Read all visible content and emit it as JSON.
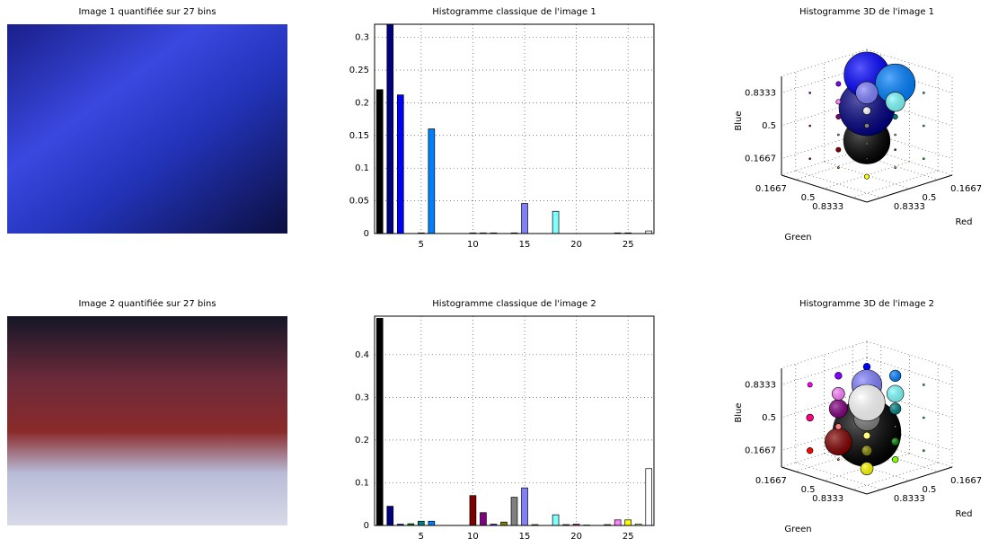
{
  "chart_data": [
    {
      "type": "image",
      "title": "Image 1 quantifiée sur 27 bins"
    },
    {
      "type": "bar",
      "title": "Histogramme classique de l'image 1",
      "x": [
        1,
        2,
        3,
        4,
        5,
        6,
        7,
        8,
        9,
        10,
        11,
        12,
        13,
        14,
        15,
        16,
        17,
        18,
        19,
        20,
        21,
        22,
        23,
        24,
        25,
        26,
        27
      ],
      "values": [
        0.22,
        0.32,
        0.212,
        0,
        0.001,
        0.16,
        0,
        0,
        0,
        0.001,
        0.001,
        0.001,
        0,
        0.001,
        0.046,
        0,
        0,
        0.034,
        0,
        0,
        0,
        0,
        0,
        0.001,
        0.001,
        0,
        0.004
      ],
      "colors": [
        "#000000",
        "#000080",
        "#0000ff",
        "#008000",
        "#008080",
        "#0080ff",
        "#00ff00",
        "#00ff80",
        "#00ffff",
        "#800000",
        "#800080",
        "#8000ff",
        "#808000",
        "#808080",
        "#8080ff",
        "#80ff00",
        "#80ff80",
        "#80ffff",
        "#ff0000",
        "#ff0080",
        "#ff00ff",
        "#ff8000",
        "#ff8080",
        "#ff80ff",
        "#ffff00",
        "#ffff80",
        "#ffffff"
      ],
      "xlim": [
        0.5,
        27.5
      ],
      "xticks": [
        5,
        10,
        15,
        20,
        25
      ],
      "ylim": [
        0,
        0.32
      ],
      "yticks": [
        0,
        0.05,
        0.1,
        0.15,
        0.2,
        0.25,
        0.3
      ],
      "grid": true
    },
    {
      "type": "scatter3d",
      "title": "Histogramme 3D de l'image 1",
      "xlabel": "Red",
      "ylabel": "Green",
      "zlabel": "Blue",
      "x": [
        0.1667,
        0.1667,
        0.1667,
        0.1667,
        0.1667,
        0.1667,
        0.1667,
        0.1667,
        0.1667,
        0.5,
        0.5,
        0.5,
        0.5,
        0.5,
        0.5,
        0.5,
        0.5,
        0.5,
        0.8333,
        0.8333,
        0.8333,
        0.8333,
        0.8333,
        0.8333,
        0.8333,
        0.8333,
        0.8333
      ],
      "y": [
        0.1667,
        0.1667,
        0.1667,
        0.5,
        0.5,
        0.5,
        0.8333,
        0.8333,
        0.8333,
        0.1667,
        0.1667,
        0.1667,
        0.5,
        0.5,
        0.5,
        0.8333,
        0.8333,
        0.8333,
        0.1667,
        0.1667,
        0.1667,
        0.5,
        0.5,
        0.5,
        0.8333,
        0.8333,
        0.8333
      ],
      "z": [
        0.1667,
        0.5,
        0.8333,
        0.1667,
        0.5,
        0.8333,
        0.1667,
        0.5,
        0.8333,
        0.1667,
        0.5,
        0.8333,
        0.1667,
        0.5,
        0.8333,
        0.1667,
        0.5,
        0.8333,
        0.1667,
        0.5,
        0.8333,
        0.1667,
        0.5,
        0.8333,
        0.1667,
        0.5,
        0.8333
      ],
      "sizes": [
        0.22,
        0.32,
        0.212,
        0,
        0.001,
        0.16,
        0,
        0,
        0,
        0.001,
        0.001,
        0.001,
        0,
        0.001,
        0.046,
        0,
        0,
        0.034,
        0,
        0,
        0,
        0,
        0,
        0.001,
        0.001,
        0,
        0.004
      ],
      "colors": [
        "#000000",
        "#000080",
        "#0000ff",
        "#008000",
        "#008080",
        "#0080ff",
        "#00ff00",
        "#00ff80",
        "#00ffff",
        "#800000",
        "#800080",
        "#8000ff",
        "#808000",
        "#808080",
        "#8080ff",
        "#80ff00",
        "#80ff80",
        "#80ffff",
        "#ff0000",
        "#ff0080",
        "#ff00ff",
        "#ff8000",
        "#ff8080",
        "#ff80ff",
        "#ffff00",
        "#ffff80",
        "#ffffff"
      ],
      "xlim": [
        0,
        1
      ],
      "ylim": [
        0,
        1
      ],
      "zlim": [
        0,
        1
      ],
      "xticks": [
        0.1667,
        0.5,
        0.8333
      ],
      "yticks": [
        0.1667,
        0.5,
        0.8333
      ],
      "zticks": [
        0.1667,
        0.5,
        0.8333
      ],
      "grid": true
    },
    {
      "type": "image",
      "title": "Image 2 quantifiée sur 27 bins"
    },
    {
      "type": "bar",
      "title": "Histogramme classique de l'image 2",
      "x": [
        1,
        2,
        3,
        4,
        5,
        6,
        7,
        8,
        9,
        10,
        11,
        12,
        13,
        14,
        15,
        16,
        17,
        18,
        19,
        20,
        21,
        22,
        23,
        24,
        25,
        26,
        27
      ],
      "values": [
        0.485,
        0.045,
        0.003,
        0.004,
        0.01,
        0.01,
        0,
        0,
        0,
        0.07,
        0.03,
        0.003,
        0.008,
        0.066,
        0.088,
        0.002,
        0,
        0.025,
        0.002,
        0.003,
        0.001,
        0,
        0.002,
        0.013,
        0.013,
        0.003,
        0.133
      ],
      "colors": [
        "#000000",
        "#000080",
        "#0000ff",
        "#008000",
        "#008080",
        "#0080ff",
        "#00ff00",
        "#00ff80",
        "#00ffff",
        "#800000",
        "#800080",
        "#8000ff",
        "#808000",
        "#808080",
        "#8080ff",
        "#80ff00",
        "#80ff80",
        "#80ffff",
        "#ff0000",
        "#ff0080",
        "#ff00ff",
        "#ff8000",
        "#ff8080",
        "#ff80ff",
        "#ffff00",
        "#ffff80",
        "#ffffff"
      ],
      "xlim": [
        0.5,
        27.5
      ],
      "xticks": [
        5,
        10,
        15,
        20,
        25
      ],
      "ylim": [
        0,
        0.49
      ],
      "yticks": [
        0,
        0.1,
        0.2,
        0.3,
        0.4
      ],
      "grid": true
    },
    {
      "type": "scatter3d",
      "title": "Histogramme 3D de l'image 2",
      "xlabel": "Red",
      "ylabel": "Green",
      "zlabel": "Blue",
      "x": [
        0.1667,
        0.1667,
        0.1667,
        0.1667,
        0.1667,
        0.1667,
        0.1667,
        0.1667,
        0.1667,
        0.5,
        0.5,
        0.5,
        0.5,
        0.5,
        0.5,
        0.5,
        0.5,
        0.5,
        0.8333,
        0.8333,
        0.8333,
        0.8333,
        0.8333,
        0.8333,
        0.8333,
        0.8333,
        0.8333
      ],
      "y": [
        0.1667,
        0.1667,
        0.1667,
        0.5,
        0.5,
        0.5,
        0.8333,
        0.8333,
        0.8333,
        0.1667,
        0.1667,
        0.1667,
        0.5,
        0.5,
        0.5,
        0.8333,
        0.8333,
        0.8333,
        0.1667,
        0.1667,
        0.1667,
        0.5,
        0.5,
        0.5,
        0.8333,
        0.8333,
        0.8333
      ],
      "z": [
        0.1667,
        0.5,
        0.8333,
        0.1667,
        0.5,
        0.8333,
        0.1667,
        0.5,
        0.8333,
        0.1667,
        0.5,
        0.8333,
        0.1667,
        0.5,
        0.8333,
        0.1667,
        0.5,
        0.8333,
        0.1667,
        0.5,
        0.8333,
        0.1667,
        0.5,
        0.8333,
        0.1667,
        0.5,
        0.8333
      ],
      "sizes": [
        0.485,
        0.045,
        0.003,
        0.004,
        0.01,
        0.01,
        0,
        0,
        0,
        0.07,
        0.03,
        0.003,
        0.008,
        0.066,
        0.088,
        0.002,
        0,
        0.025,
        0.002,
        0.003,
        0.001,
        0,
        0.002,
        0.013,
        0.013,
        0.003,
        0.133
      ],
      "colors": [
        "#000000",
        "#000080",
        "#0000ff",
        "#008000",
        "#008080",
        "#0080ff",
        "#00ff00",
        "#00ff80",
        "#00ffff",
        "#800000",
        "#800080",
        "#8000ff",
        "#808000",
        "#808080",
        "#8080ff",
        "#80ff00",
        "#80ff80",
        "#80ffff",
        "#ff0000",
        "#ff0080",
        "#ff00ff",
        "#ff8000",
        "#ff8080",
        "#ff80ff",
        "#ffff00",
        "#ffff80",
        "#ffffff"
      ],
      "xlim": [
        0,
        1
      ],
      "ylim": [
        0,
        1
      ],
      "zlim": [
        0,
        1
      ],
      "xticks": [
        0.1667,
        0.5,
        0.8333
      ],
      "yticks": [
        0.1667,
        0.5,
        0.8333
      ],
      "zticks": [
        0.1667,
        0.5,
        0.8333
      ],
      "grid": true
    }
  ]
}
